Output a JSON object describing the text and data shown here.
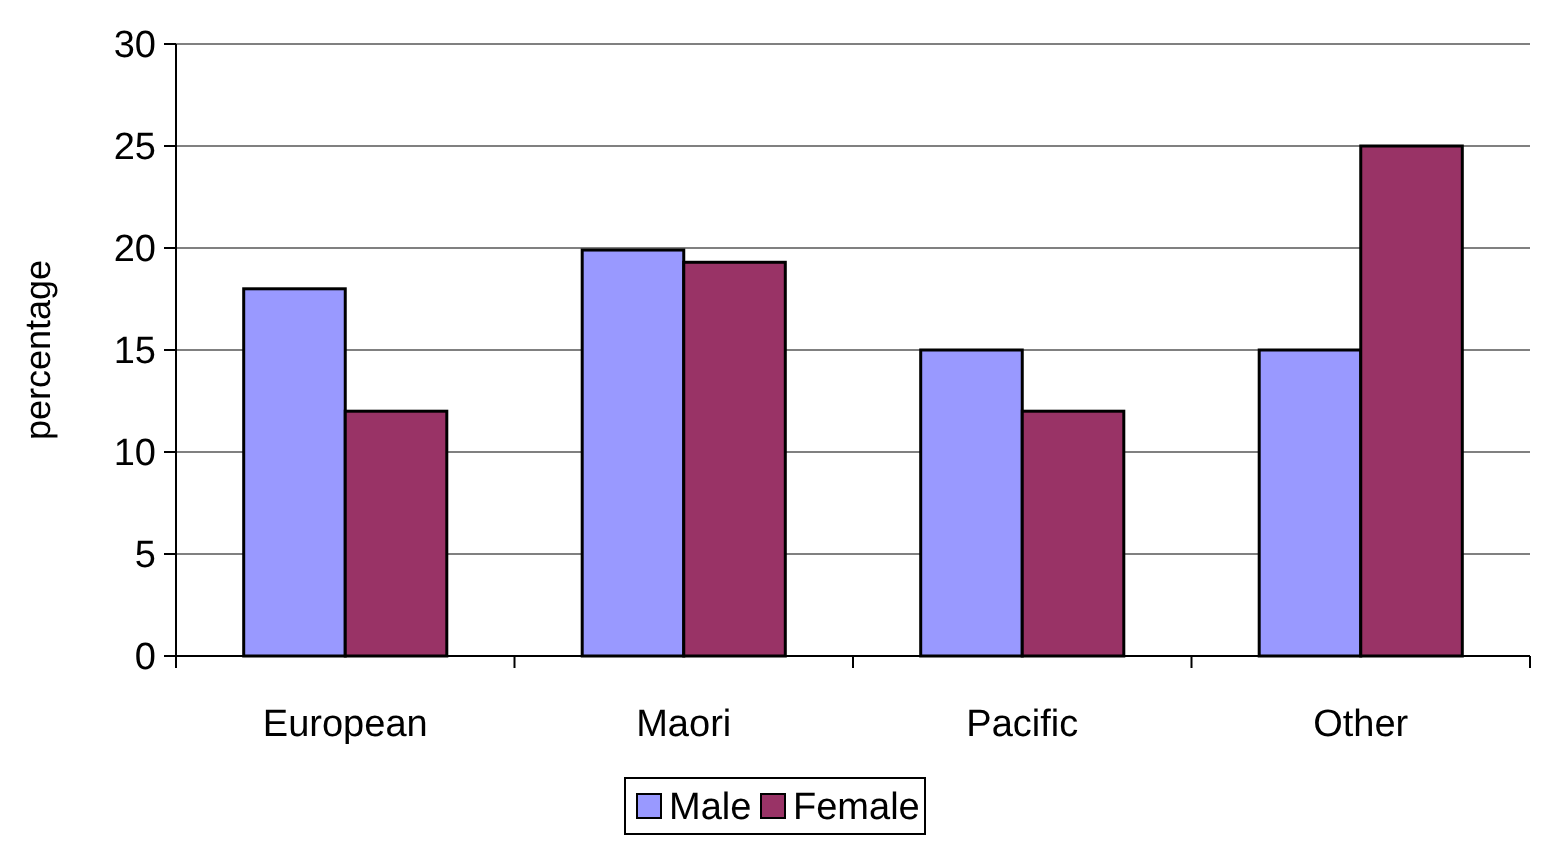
{
  "chart_data": {
    "type": "bar",
    "ylabel": "percentage",
    "categories": [
      "European",
      "Maori",
      "Pacific",
      "Other"
    ],
    "series": [
      {
        "name": "Male",
        "color": "#9999ff",
        "values": [
          18,
          19.9,
          15,
          15
        ]
      },
      {
        "name": "Female",
        "color": "#993366",
        "values": [
          12,
          19.3,
          12,
          25
        ]
      }
    ],
    "ylim": [
      0,
      30
    ],
    "yticks": [
      0,
      5,
      10,
      15,
      20,
      25,
      30
    ],
    "grid": "y",
    "legend": "bottom"
  }
}
